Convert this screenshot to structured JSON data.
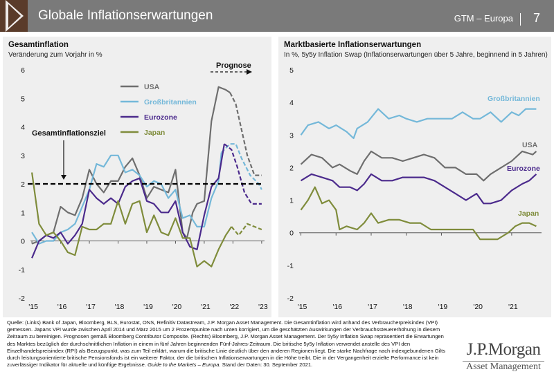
{
  "header": {
    "title": "Globale Inflationserwartungen",
    "region": "GTM – Europa",
    "page_number": "7"
  },
  "left_panel": {
    "title": "Gesamtinflation",
    "subtitle": "Veränderung zum Vorjahr in %"
  },
  "right_panel": {
    "title": "Marktbasierte Inflationserwartungen",
    "subtitle": "In %, 5y5y Inflation Swap (Inflationserwartungen über 5 Jahre, beginnend in 5 Jahren)"
  },
  "colors": {
    "usa": "#6e6e6e",
    "uk": "#74b8d9",
    "eurozone": "#4b2a8c",
    "japan": "#7f8c3b",
    "target": "#000000"
  },
  "chart_data": [
    {
      "type": "line",
      "title": "Gesamtinflation",
      "ylabel": "Veränderung zum Vorjahr in %",
      "ylim": [
        -2,
        6
      ],
      "y_ticks": [
        "-2",
        "-1",
        "0",
        "1",
        "2",
        "3",
        "4",
        "5",
        "6"
      ],
      "x_ticks": [
        {
          "label": "'15",
          "x": 2015.0
        },
        {
          "label": "'16",
          "x": 2016.0
        },
        {
          "label": "'17",
          "x": 2017.0
        },
        {
          "label": "'18",
          "x": 2018.0
        },
        {
          "label": "'19",
          "x": 2019.0
        },
        {
          "label": "'20",
          "x": 2020.0
        },
        {
          "label": "'21",
          "x": 2021.0
        },
        {
          "label": "'22",
          "x": 2022.0
        },
        {
          "label": "'23",
          "x": 2023.0
        }
      ],
      "xlim": [
        2014.95,
        2023.1
      ],
      "forecast_label": "Prognose",
      "target": {
        "label": "Gesamtinflationsziel",
        "value": 2
      },
      "series": [
        {
          "name": "USA",
          "key": "usa",
          "x": [
            2015.0,
            2015.25,
            2015.5,
            2015.75,
            2016.0,
            2016.25,
            2016.5,
            2016.75,
            2017.0,
            2017.25,
            2017.5,
            2017.75,
            2018.0,
            2018.25,
            2018.5,
            2018.75,
            2019.0,
            2019.25,
            2019.5,
            2019.75,
            2020.0,
            2020.25,
            2020.4,
            2020.6,
            2020.75,
            2021.0,
            2021.25,
            2021.5,
            2021.75,
            2021.9
          ],
          "y": [
            -0.1,
            0.0,
            0.2,
            0.3,
            1.2,
            1.0,
            0.9,
            1.5,
            2.5,
            2.0,
            1.7,
            2.1,
            2.1,
            2.6,
            2.9,
            2.3,
            1.5,
            1.9,
            1.8,
            1.7,
            2.5,
            0.3,
            0.1,
            1.0,
            1.3,
            1.4,
            4.2,
            5.4,
            5.3,
            5.2
          ],
          "forecast_x": [
            2021.9,
            2022.1,
            2022.3,
            2022.5,
            2022.75,
            2023.0
          ],
          "forecast_y": [
            5.2,
            4.8,
            3.9,
            3.0,
            2.3,
            2.3
          ]
        },
        {
          "name": "Großbritannien",
          "key": "uk",
          "x": [
            2015.0,
            2015.25,
            2015.5,
            2015.75,
            2016.0,
            2016.25,
            2016.5,
            2016.75,
            2017.0,
            2017.25,
            2017.5,
            2017.75,
            2018.0,
            2018.25,
            2018.5,
            2018.75,
            2019.0,
            2019.25,
            2019.5,
            2019.75,
            2020.0,
            2020.25,
            2020.5,
            2020.75,
            2021.0,
            2021.25,
            2021.5,
            2021.6
          ],
          "y": [
            0.3,
            -0.1,
            0.0,
            0.0,
            0.3,
            0.4,
            0.6,
            1.2,
            1.8,
            2.7,
            2.6,
            3.0,
            3.0,
            2.4,
            2.5,
            2.3,
            1.9,
            2.1,
            2.0,
            1.5,
            1.8,
            0.8,
            0.9,
            0.5,
            0.5,
            1.5,
            2.1,
            3.1
          ],
          "forecast_x": [
            2021.6,
            2021.9,
            2022.1,
            2022.3,
            2022.6,
            2022.9,
            2023.0
          ],
          "forecast_y": [
            3.1,
            3.4,
            3.4,
            2.9,
            2.3,
            2.0,
            1.8
          ]
        },
        {
          "name": "Eurozone",
          "key": "eurozone",
          "x": [
            2015.0,
            2015.25,
            2015.5,
            2015.75,
            2016.0,
            2016.25,
            2016.5,
            2016.75,
            2017.0,
            2017.25,
            2017.5,
            2017.75,
            2018.0,
            2018.25,
            2018.5,
            2018.75,
            2019.0,
            2019.25,
            2019.5,
            2019.75,
            2020.0,
            2020.25,
            2020.5,
            2020.75,
            2021.0,
            2021.25,
            2021.5,
            2021.7
          ],
          "y": [
            -0.6,
            0.0,
            0.2,
            0.1,
            0.3,
            -0.1,
            0.2,
            0.6,
            1.8,
            1.5,
            1.3,
            1.5,
            1.3,
            1.9,
            2.1,
            2.2,
            1.4,
            1.3,
            1.0,
            1.0,
            1.4,
            0.3,
            -0.2,
            -0.3,
            0.9,
            1.9,
            2.2,
            3.4
          ],
          "forecast_x": [
            2021.7,
            2021.95,
            2022.15,
            2022.4,
            2022.65,
            2023.0
          ],
          "forecast_y": [
            3.4,
            3.2,
            2.6,
            1.7,
            1.3,
            1.3
          ]
        },
        {
          "name": "Japan",
          "key": "japan",
          "x": [
            2015.0,
            2015.25,
            2015.5,
            2015.75,
            2016.0,
            2016.25,
            2016.5,
            2016.75,
            2017.0,
            2017.25,
            2017.5,
            2017.75,
            2018.0,
            2018.25,
            2018.5,
            2018.75,
            2019.0,
            2019.25,
            2019.5,
            2019.75,
            2020.0,
            2020.25,
            2020.5,
            2020.75,
            2021.0,
            2021.25,
            2021.5,
            2021.75,
            2021.95
          ],
          "y": [
            2.4,
            0.6,
            0.2,
            0.3,
            0.0,
            -0.4,
            -0.5,
            0.5,
            0.4,
            0.4,
            0.6,
            0.6,
            1.4,
            0.6,
            1.3,
            1.4,
            0.3,
            0.9,
            0.3,
            0.2,
            0.8,
            0.1,
            0.1,
            -0.9,
            -0.7,
            -0.9,
            -0.3,
            0.2,
            0.5
          ],
          "forecast_x": [
            2021.95,
            2022.2,
            2022.5,
            2022.75,
            2023.0
          ],
          "forecast_y": [
            0.5,
            0.2,
            0.6,
            0.5,
            0.4
          ]
        }
      ]
    },
    {
      "type": "line",
      "title": "Marktbasierte Inflationserwartungen",
      "ylabel": "In %, 5y5y Inflation Swap",
      "ylim": [
        -2,
        5
      ],
      "y_ticks": [
        "-2",
        "-1",
        "0",
        "1",
        "2",
        "3",
        "4",
        "5"
      ],
      "x_ticks": [
        {
          "label": "'15",
          "x": 2015.0
        },
        {
          "label": "'16",
          "x": 2016.0
        },
        {
          "label": "'17",
          "x": 2017.0
        },
        {
          "label": "'18",
          "x": 2018.0
        },
        {
          "label": "'19",
          "x": 2019.0
        },
        {
          "label": "'20",
          "x": 2020.0
        },
        {
          "label": "'21",
          "x": 2021.0
        }
      ],
      "xlim": [
        2014.95,
        2021.85
      ],
      "series": [
        {
          "name": "Großbritannien",
          "key": "uk",
          "x": [
            2015.0,
            2015.2,
            2015.5,
            2015.8,
            2016.0,
            2016.3,
            2016.5,
            2016.6,
            2016.9,
            2017.2,
            2017.5,
            2017.8,
            2018.0,
            2018.3,
            2018.6,
            2019.0,
            2019.3,
            2019.6,
            2019.9,
            2020.1,
            2020.4,
            2020.7,
            2021.0,
            2021.2,
            2021.4,
            2021.7
          ],
          "y": [
            3.0,
            3.3,
            3.4,
            3.2,
            3.3,
            3.1,
            2.9,
            3.2,
            3.4,
            3.8,
            3.5,
            3.6,
            3.5,
            3.4,
            3.5,
            3.5,
            3.5,
            3.7,
            3.5,
            3.5,
            3.7,
            3.4,
            3.7,
            3.6,
            3.8,
            3.8
          ]
        },
        {
          "name": "USA",
          "key": "usa",
          "x": [
            2015.0,
            2015.3,
            2015.6,
            2015.9,
            2016.1,
            2016.4,
            2016.6,
            2016.8,
            2017.0,
            2017.3,
            2017.6,
            2017.9,
            2018.2,
            2018.5,
            2018.8,
            2019.1,
            2019.4,
            2019.7,
            2020.0,
            2020.2,
            2020.4,
            2020.7,
            2021.0,
            2021.3,
            2021.6,
            2021.7
          ],
          "y": [
            2.1,
            2.4,
            2.3,
            2.0,
            2.1,
            1.9,
            1.8,
            2.2,
            2.5,
            2.3,
            2.3,
            2.2,
            2.3,
            2.4,
            2.3,
            2.0,
            2.0,
            1.8,
            1.8,
            1.6,
            1.8,
            2.0,
            2.2,
            2.5,
            2.4,
            2.5
          ]
        },
        {
          "name": "Eurozone",
          "key": "eurozone",
          "x": [
            2015.0,
            2015.3,
            2015.6,
            2015.9,
            2016.1,
            2016.4,
            2016.6,
            2016.8,
            2017.0,
            2017.3,
            2017.6,
            2017.9,
            2018.2,
            2018.5,
            2018.8,
            2019.1,
            2019.4,
            2019.7,
            2020.0,
            2020.2,
            2020.4,
            2020.7,
            2021.0,
            2021.3,
            2021.5,
            2021.7
          ],
          "y": [
            1.6,
            1.8,
            1.7,
            1.6,
            1.4,
            1.4,
            1.3,
            1.5,
            1.8,
            1.6,
            1.6,
            1.7,
            1.7,
            1.7,
            1.6,
            1.4,
            1.2,
            1.0,
            1.2,
            0.9,
            0.9,
            1.0,
            1.3,
            1.5,
            1.6,
            1.8
          ]
        },
        {
          "name": "Japan",
          "key": "japan",
          "x": [
            2015.0,
            2015.2,
            2015.4,
            2015.6,
            2015.8,
            2016.0,
            2016.1,
            2016.3,
            2016.6,
            2016.8,
            2017.0,
            2017.2,
            2017.5,
            2017.8,
            2018.1,
            2018.4,
            2018.7,
            2019.0,
            2019.3,
            2019.6,
            2019.9,
            2020.1,
            2020.3,
            2020.6,
            2020.9,
            2021.1,
            2021.3,
            2021.5,
            2021.7
          ],
          "y": [
            0.7,
            1.0,
            1.4,
            0.9,
            1.0,
            0.7,
            0.1,
            0.2,
            0.1,
            0.3,
            0.6,
            0.3,
            0.4,
            0.4,
            0.3,
            0.3,
            0.1,
            0.1,
            0.1,
            0.1,
            0.1,
            -0.2,
            -0.2,
            -0.2,
            0.0,
            0.2,
            0.3,
            0.3,
            0.2
          ]
        }
      ]
    }
  ],
  "source_text": "Quelle: (Links) Bank of Japan, Bloomberg, BLS, Eurostat, ONS, Refinitiv Datastream, J.P. Morgan Asset Management. Die Gesamtinflation wird anhand des Verbraucherpreis­index (VPI) gemessen. Japans VPI wurde zwischen April 2014 und März 2015 um 2 Prozentpunkte nach unten korrigiert, um die geschätzten Auswirkungen der Verbrauchssteuer­erhöhung in diesem Zeitraum zu bereinigen. Prognosen gemäß Bloomberg Contributor Composite. (Rechts) Bloomberg, J.P. Morgan Asset Management. Der 5y5y Inflation Swap repräsentiert die Erwartungen des Marktes bezüglich der durchschnittlichen Inflation in einem in fünf Jahren beginnenden Fünf-Jahres-Zeitraum. Die britische 5y5y Inflation ver­wendet anstelle des VPI den Einzelhandelspreisindex (RPI) als Bezugspunkt, was zum Teil erklärt, warum die britische Linie deutlich über den anderen Regionen liegt. Die starke Nachfrage nach indexgebundenen Gilts durch leistungsorientierte britische Pensionsfonds ist ein weiterer Faktor, der die britischen Inflationserwartungen in die Höhe treibt. Die in der Vergangenheit erzielte Performance ist kein zuverlässiger Indikator für aktuelle und künftige Ergebnisse.",
  "source_guide": "Guide to the Markets – Europa",
  "source_date": ". Stand der Daten: 30. September 2021.",
  "logo": {
    "line1": "J.P.Morgan",
    "line2": "Asset Management"
  }
}
